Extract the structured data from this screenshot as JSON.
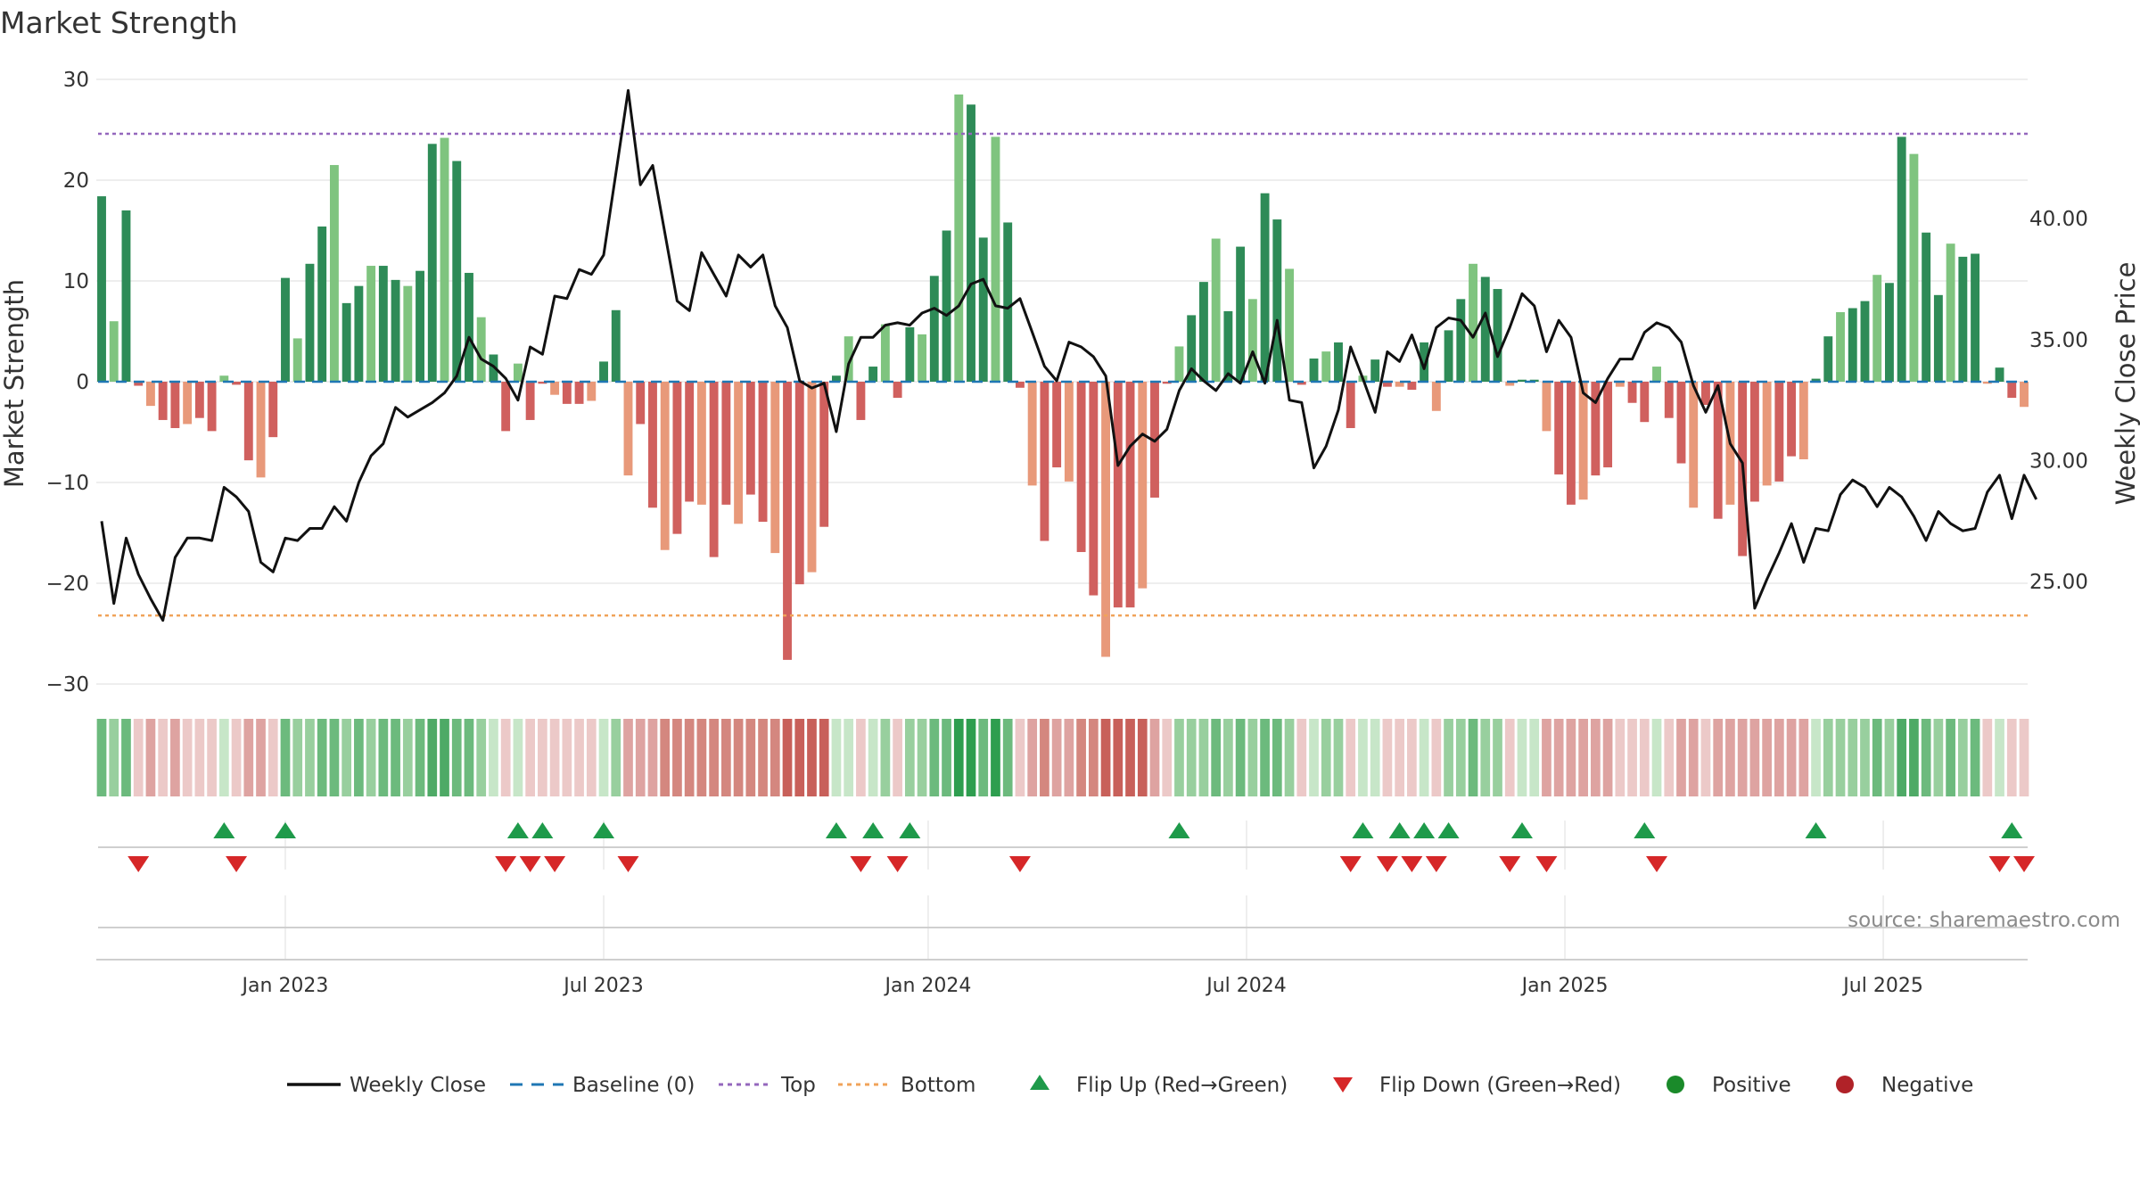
{
  "chart_data": {
    "type": "bar+line",
    "title": "Market Strength",
    "source_note": "source: sharemaestro.com",
    "y_left": {
      "label": "Market Strength",
      "range": [
        -30,
        30
      ],
      "ticks": [
        30,
        20,
        10,
        0,
        -10,
        -20,
        -30
      ],
      "tick_labels": [
        "30",
        "20",
        "10",
        "0",
        "−10",
        "−20",
        "−30"
      ]
    },
    "y_right": {
      "label": "Weekly Close Price",
      "range": [
        21.8,
        44.8
      ],
      "ticks": [
        40,
        35,
        30,
        25
      ],
      "tick_labels": [
        "40.00",
        "35.00",
        "30.00",
        "25.00"
      ]
    },
    "top_level": 24.6,
    "bottom_level": -23.2,
    "x_axis": {
      "ticks": [
        "Jan 2023",
        "Jul 2023",
        "Jan 2024",
        "Jul 2024",
        "Jan 2025",
        "Jul 2025"
      ],
      "tick_week_index": [
        15,
        41,
        67.5,
        93.5,
        119.5,
        145.5
      ]
    },
    "strength": [
      18.4,
      6,
      17,
      -0.4,
      -2.4,
      -3.8,
      -4.6,
      -4.2,
      -3.6,
      -4.9,
      0.6,
      -0.3,
      -7.8,
      -9.5,
      -5.5,
      10.3,
      4.3,
      11.7,
      15.4,
      21.5,
      7.8,
      9.5,
      11.5,
      11.5,
      10.1,
      9.5,
      11,
      23.6,
      24.2,
      21.9,
      10.8,
      6.4,
      2.7,
      -4.9,
      1.8,
      -3.8,
      -0.2,
      -1.3,
      -2.2,
      -2.2,
      -1.9,
      2,
      7.1,
      -9.3,
      -4.2,
      -12.5,
      -16.7,
      -15.1,
      -11.9,
      -12.2,
      -17.4,
      -12.2,
      -14.1,
      -11.2,
      -13.9,
      -17,
      -27.6,
      -20.1,
      -18.9,
      -14.4,
      0.6,
      4.5,
      -3.8,
      1.5,
      5.7,
      -1.6,
      5.4,
      4.7,
      10.5,
      15,
      28.5,
      27.5,
      14.3,
      24.3,
      15.8,
      -0.6,
      -10.3,
      -15.8,
      -8.5,
      -9.9,
      -16.9,
      -21.2,
      -27.3,
      -22.4,
      -22.4,
      -20.5,
      -11.5,
      -0.2,
      3.5,
      6.6,
      9.9,
      14.2,
      7,
      13.4,
      8.2,
      18.7,
      16.1,
      11.2,
      -0.3,
      2.3,
      3,
      3.9,
      -4.6,
      0.6,
      2.2,
      -0.5,
      -0.5,
      -0.8,
      3.9,
      -2.9,
      5.1,
      8.2,
      11.7,
      10.4,
      9.2,
      -0.4,
      0.2,
      0.2,
      -4.9,
      -9.2,
      -12.2,
      -11.7,
      -9.3,
      -8.5,
      -0.5,
      -2.1,
      -4,
      1.5,
      -3.6,
      -8.1,
      -12.5,
      -2.3,
      -13.6,
      -12.2,
      -17.3,
      -11.9,
      -10.3,
      -9.9,
      -7.4,
      -7.7,
      0.3,
      4.5,
      6.9,
      7.3,
      8,
      10.6,
      9.8,
      24.3,
      22.6,
      14.8,
      8.6,
      13.7,
      12.4,
      12.7,
      -0.2,
      1.4,
      -1.6,
      -2.5
    ],
    "weekly_close": [
      27.5,
      24.1,
      26.8,
      25.3,
      24.3,
      23.4,
      26,
      26.8,
      26.8,
      26.7,
      28.9,
      28.5,
      27.9,
      25.8,
      25.4,
      26.8,
      26.7,
      27.2,
      27.2,
      28.1,
      27.5,
      29.1,
      30.2,
      30.7,
      32.2,
      31.8,
      32.1,
      32.4,
      32.8,
      33.5,
      35.1,
      34.2,
      33.9,
      33.4,
      32.5,
      34.7,
      34.4,
      36.8,
      36.7,
      37.9,
      37.7,
      38.5,
      41.9,
      45.3,
      41.4,
      42.2,
      39.4,
      36.6,
      36.2,
      38.6,
      37.7,
      36.8,
      38.5,
      38,
      38.5,
      36.4,
      35.5,
      33.3,
      33,
      33.2,
      31.2,
      34,
      35.1,
      35.1,
      35.6,
      35.7,
      35.6,
      36.1,
      36.3,
      36,
      36.4,
      37.3,
      37.5,
      36.4,
      36.3,
      36.7,
      35.3,
      33.9,
      33.3,
      34.9,
      34.7,
      34.3,
      33.5,
      29.8,
      30.6,
      31.1,
      30.8,
      31.3,
      32.9,
      33.8,
      33.3,
      32.9,
      33.6,
      33.2,
      34.5,
      33.2,
      35.8,
      32.5,
      32.4,
      29.7,
      30.6,
      32.1,
      34.7,
      33.4,
      32,
      34.5,
      34.1,
      35.2,
      33.8,
      35.5,
      35.9,
      35.8,
      35.1,
      36.1,
      34.3,
      35.5,
      36.9,
      36.4,
      34.5,
      35.8,
      35.1,
      32.8,
      32.4,
      33.4,
      34.2,
      34.2,
      35.3,
      35.7,
      35.5,
      34.9,
      33.1,
      32,
      33.1,
      30.7,
      29.9,
      23.9,
      25.1,
      26.2,
      27.4,
      25.8,
      27.2,
      27.1,
      28.6,
      29.2,
      28.9,
      28.1,
      28.9,
      28.5,
      27.7,
      26.7,
      27.9,
      27.4,
      27.1,
      27.2,
      28.7,
      29.4,
      27.6,
      29.4,
      28.4
    ],
    "flip_up_weeks": [
      10,
      15,
      34,
      36,
      41,
      60,
      63,
      66,
      88,
      103,
      106,
      108,
      110,
      116,
      126,
      140,
      156
    ],
    "flip_down_weeks": [
      3,
      11,
      33,
      35,
      37,
      43,
      62,
      65,
      75,
      102,
      105,
      107,
      109,
      115,
      118,
      127,
      155,
      157
    ],
    "band_state": [
      3,
      2,
      3,
      -1,
      -2,
      -1,
      -2,
      -1,
      -1,
      -1,
      1,
      -1,
      -2,
      -2,
      -1,
      3,
      2,
      2,
      3,
      3,
      2,
      3,
      2,
      3,
      3,
      2,
      3,
      4,
      4,
      3,
      3,
      2,
      1,
      -1,
      1,
      -1,
      -1,
      -1,
      -1,
      -1,
      -1,
      1,
      2,
      -2,
      -2,
      -2,
      -3,
      -3,
      -3,
      -3,
      -3,
      -3,
      -3,
      -3,
      -3,
      -3,
      -4,
      -4,
      -4,
      -4,
      1,
      1,
      -1,
      1,
      2,
      -1,
      2,
      2,
      3,
      3,
      5,
      5,
      3,
      5,
      3,
      -1,
      -2,
      -3,
      -2,
      -2,
      -3,
      -3,
      -4,
      -4,
      -4,
      -4,
      -2,
      -1,
      2,
      2,
      2,
      3,
      2,
      3,
      2,
      3,
      3,
      2,
      -1,
      1,
      2,
      2,
      -1,
      1,
      1,
      -1,
      -1,
      -1,
      1,
      -1,
      2,
      2,
      3,
      2,
      2,
      -1,
      1,
      1,
      -2,
      -2,
      -2,
      -2,
      -2,
      -2,
      -1,
      -1,
      -1,
      1,
      -1,
      -2,
      -2,
      -1,
      -2,
      -2,
      -2,
      -2,
      -2,
      -2,
      -2,
      -2,
      1,
      2,
      2,
      2,
      2,
      3,
      2,
      4,
      4,
      3,
      2,
      3,
      2,
      3,
      -1,
      1,
      -1,
      -1
    ],
    "series": [
      {
        "name": "Weekly Close",
        "color": "#111111",
        "style": "solid"
      },
      {
        "name": "Baseline (0)",
        "color": "#1f77b4",
        "style": "dashed"
      },
      {
        "name": "Top",
        "color": "#9467bd",
        "style": "dotted"
      },
      {
        "name": "Bottom",
        "color": "#f0a35a",
        "style": "dotted"
      },
      {
        "name": "Flip Up (Red→Green)",
        "color": "#1e9a4a",
        "marker": "triangle-up"
      },
      {
        "name": "Flip Down (Green→Red)",
        "color": "#d62728",
        "marker": "triangle-down"
      },
      {
        "name": "Positive",
        "color": "#1a8a2a",
        "marker": "circle"
      },
      {
        "name": "Negative",
        "color": "#b02228",
        "marker": "circle"
      }
    ]
  },
  "colors": {
    "positive_strong": "#2e8b57",
    "positive_light": "#7fc47f",
    "negative_strong": "#d0605e",
    "negative_light": "#e8997a",
    "grid": "#e9e9e9"
  }
}
